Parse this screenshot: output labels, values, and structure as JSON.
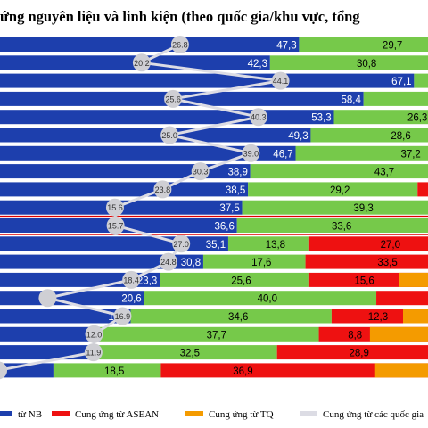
{
  "title": "ứng nguyên liệu và linh kiện (theo quốc gia/khu vực, tổng",
  "colors": {
    "nb": "#1d3fad",
    "other": "#76c94a",
    "asean": "#ee1111",
    "tq": "#f49b00",
    "line": "#dcdce4",
    "marker": "#cfcfd4",
    "separator": "#dd0000"
  },
  "legend": [
    {
      "label": "từ NB",
      "color": "#1d3fad"
    },
    {
      "label": "Cung ứng từ ASEAN",
      "color": "#ee1111"
    },
    {
      "label": "Cung ứng từ TQ",
      "color": "#f49b00"
    },
    {
      "label": "Cung ứng từ các quốc gia",
      "color": "#dcdce4"
    }
  ],
  "chart_data": {
    "type": "bar",
    "rows": [
      {
        "nb": 47.3,
        "nb_label": "47,3",
        "other": 29.7,
        "other_label": "29,7",
        "asean": null,
        "asean_label": "",
        "line": 26.8
      },
      {
        "nb": 42.3,
        "nb_label": "42,3",
        "other": 30.8,
        "other_label": "30,8",
        "asean": null,
        "asean_label": "",
        "line": 20.2
      },
      {
        "nb": 67.1,
        "nb_label": "67,1",
        "other": 10.0,
        "other_label": "",
        "asean": null,
        "asean_label": "",
        "line": 44.1
      },
      {
        "nb": 58.4,
        "nb_label": "58,4",
        "other": 20.0,
        "other_label": "",
        "asean": null,
        "asean_label": "",
        "line": 25.6
      },
      {
        "nb": 53.3,
        "nb_label": "53,3",
        "other": 26.3,
        "other_label": "26,3",
        "asean": null,
        "asean_label": "",
        "line": 40.3
      },
      {
        "nb": 49.3,
        "nb_label": "49,3",
        "other": 28.6,
        "other_label": "28,6",
        "asean": null,
        "asean_label": "",
        "line": 25.0
      },
      {
        "nb": 46.7,
        "nb_label": "46,7",
        "other": 37.2,
        "other_label": "37,2",
        "asean": null,
        "asean_label": "",
        "line": 39.0
      },
      {
        "nb": 38.9,
        "nb_label": "38,9",
        "other": 43.7,
        "other_label": "43,7",
        "asean": null,
        "asean_label": "",
        "line": 30.3
      },
      {
        "nb": 38.5,
        "nb_label": "38,5",
        "other": 29.2,
        "other_label": "29,2",
        "asean": 10.0,
        "asean_label": "",
        "line": 23.8
      },
      {
        "nb": 37.5,
        "nb_label": "37,5",
        "other": 39.3,
        "other_label": "39,3",
        "asean": null,
        "asean_label": "",
        "line": 15.6
      },
      {
        "nb": 36.6,
        "nb_label": "36,6",
        "other": 33.6,
        "other_label": "33,6",
        "asean": null,
        "asean_label": "",
        "line": 15.7
      },
      {
        "nb": 35.1,
        "nb_label": "35,1",
        "other": 13.8,
        "other_label": "13,8",
        "asean": 27.0,
        "asean_label": "27,0",
        "line": 27.0
      },
      {
        "nb": 30.8,
        "nb_label": "30,8",
        "other": 17.6,
        "other_label": "17,6",
        "asean": 33.5,
        "asean_label": "33,5",
        "line": 24.8
      },
      {
        "nb": 23.3,
        "nb_label": "23,3",
        "other": 25.6,
        "other_label": "25,6",
        "asean": 15.6,
        "asean_label": "15,6",
        "tq": 10.0,
        "line": 18.4
      },
      {
        "nb": 20.6,
        "nb_label": "20,6",
        "other": 40.0,
        "other_label": "40,0",
        "asean": 15.0,
        "asean_label": "",
        "line": null
      },
      {
        "nb": 18.3,
        "nb_label": "18,3",
        "other": 34.6,
        "other_label": "34,6",
        "asean": 12.3,
        "asean_label": "12,3",
        "tq": 20.0,
        "line": 16.9
      },
      {
        "nb": 13.0,
        "nb_label": "",
        "other": 37.7,
        "other_label": "37,7",
        "asean": 8.8,
        "asean_label": "8,8",
        "tq": 20.0,
        "line": 12.0
      },
      {
        "nb": 11.0,
        "nb_label": "",
        "other": 32.5,
        "other_label": "32,5",
        "asean": 28.9,
        "asean_label": "28,9",
        "line": 11.9
      },
      {
        "nb": 5.0,
        "nb_label": "",
        "other": 18.5,
        "other_label": "18,5",
        "asean": 36.9,
        "asean_label": "36,9",
        "tq": 10.0,
        "line": null
      }
    ],
    "line_labels": [
      "26.8",
      "20.2",
      "44.1",
      "25.6",
      "40.3",
      "25.0",
      "39.0",
      "30.3",
      "23.8",
      "15.6",
      "15.7",
      "27.0",
      "24.8",
      "18.4",
      "",
      "16.9",
      "12.0",
      "11.9",
      ""
    ],
    "xlim": [
      -4.2,
      69.5
    ]
  }
}
